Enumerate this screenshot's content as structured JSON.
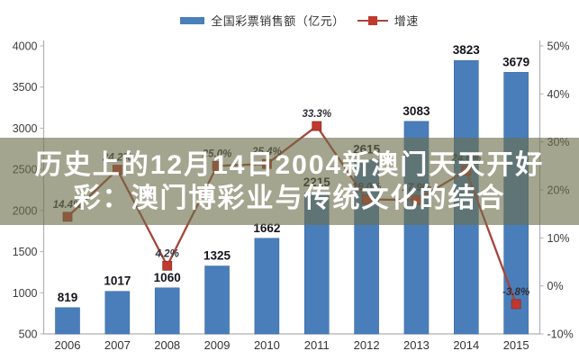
{
  "overlay": {
    "line1": "历史上的12月14日2004新澳门天天开好",
    "line2": "彩：澳门博彩业与传统文化的结合"
  },
  "chart_data": {
    "type": "bar",
    "title": "",
    "categories": [
      "2006",
      "2007",
      "2008",
      "2009",
      "2010",
      "2011",
      "2012",
      "2013",
      "2014",
      "2015"
    ],
    "series": [
      {
        "name": "全国彩票销售额（亿元）",
        "type": "bar",
        "axis": "left",
        "values": [
          819,
          1017,
          1060,
          1325,
          1662,
          2215,
          2615,
          3083,
          3823,
          3679
        ],
        "labels_visible": [
          true,
          true,
          true,
          true,
          true,
          false,
          false,
          true,
          true,
          true
        ]
      },
      {
        "name": "增速",
        "type": "line",
        "axis": "right",
        "unit": "%",
        "values": [
          14.4,
          24.2,
          4.2,
          25.0,
          25.4,
          33.3,
          18.0,
          17.9,
          24.0,
          -3.8
        ],
        "labels_visible": [
          true,
          false,
          true,
          false,
          false,
          true,
          false,
          false,
          false,
          true
        ]
      }
    ],
    "left_axis": {
      "min": 500,
      "max": 4000,
      "step": 500,
      "ticks": [
        "4000",
        "3500",
        "3000",
        "2500",
        "2000",
        "1500",
        "1000",
        "500"
      ]
    },
    "right_axis": {
      "min": -10,
      "max": 50,
      "step": 10,
      "ticks": [
        "50%",
        "40%",
        "30%",
        "20%",
        "10%",
        "0%",
        "-10%"
      ]
    },
    "grid": false,
    "legend_position": "top",
    "occlusion_note": "2011/2012 bar-top labels and the 2007/2009/2010/2012/2013/2014 growth labels are hidden behind the semi-transparent banner"
  },
  "colors": {
    "bar": "#4a7ebb",
    "bar_border": "#3a69a5",
    "line": "#a6453c",
    "marker": "#c0392e",
    "marker_border": "#8f2f26",
    "axis_line": "#b0b0b0",
    "axis_text": "#3c3c3c",
    "bar_label_text": "#15151d",
    "overlay_band": "rgba(108,109,75,0.62)",
    "overlay_text": "#ffffff"
  }
}
